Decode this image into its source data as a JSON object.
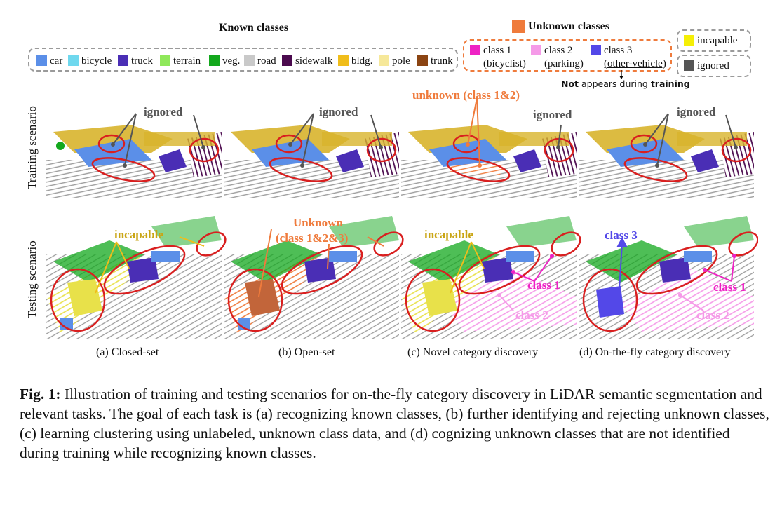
{
  "legend": {
    "known_title": "Known classes",
    "unknown_title": "Unknown classes",
    "unknown_title_color": "#ef7b3c",
    "known": [
      {
        "label": "car",
        "color": "#5b8fe8"
      },
      {
        "label": "bicycle",
        "color": "#6fd8ee"
      },
      {
        "label": "truck",
        "color": "#4a2eb5"
      },
      {
        "label": "terrain",
        "color": "#8fe85a"
      },
      {
        "label": "veg.",
        "color": "#13a81d"
      },
      {
        "label": "road",
        "color": "#c9c9c9"
      },
      {
        "label": "sidewalk",
        "color": "#4b0a4e"
      },
      {
        "label": "bldg.",
        "color": "#f0bd1a"
      },
      {
        "label": "pole",
        "color": "#f6e89a"
      },
      {
        "label": "trunk",
        "color": "#8b4412"
      }
    ],
    "unknown": [
      {
        "label": "class 1",
        "sub": "(bicyclist)",
        "color": "#ee22c4"
      },
      {
        "label": "class 2",
        "sub": "(parking)",
        "color": "#f59ae8"
      },
      {
        "label": "class 3",
        "sub": "(other-vehicle)",
        "color": "#5348e8"
      }
    ],
    "incapable": {
      "label": "incapable",
      "color": "#f5ef06"
    },
    "ignored": {
      "label": "ignored",
      "color": "#555555"
    },
    "note_prefix": "Not",
    "note_middle": " appears during ",
    "note_suffix": "training"
  },
  "rows": {
    "training": "Training scenario",
    "testing": "Testing scenario"
  },
  "annotations": {
    "ignored": "ignored",
    "unknown_12": "unknown (class 1&2)",
    "incapable": "incapable",
    "unknown_123_line1": "Unknown",
    "unknown_123_line2": "(class 1&2&3)",
    "class1": "class 1",
    "class2": "class 2",
    "class3": "class 3"
  },
  "sublabels": [
    "(a) Closed-set",
    "(b) Open-set",
    "(c) Novel category discovery",
    "(d) On-the-fly category discovery"
  ],
  "caption": {
    "label": "Fig. 1:",
    "text": " Illustration of training and testing scenarios for on-the-fly category discovery in LiDAR semantic segmentation and relevant tasks. The goal of each task is (a) recognizing known classes, (b) further identifying and rejecting unknown classes, (c) learning clustering using unlabeled, unknown class data, and (d) cognizing unknown classes that are not identified during training while recognizing known classes."
  }
}
